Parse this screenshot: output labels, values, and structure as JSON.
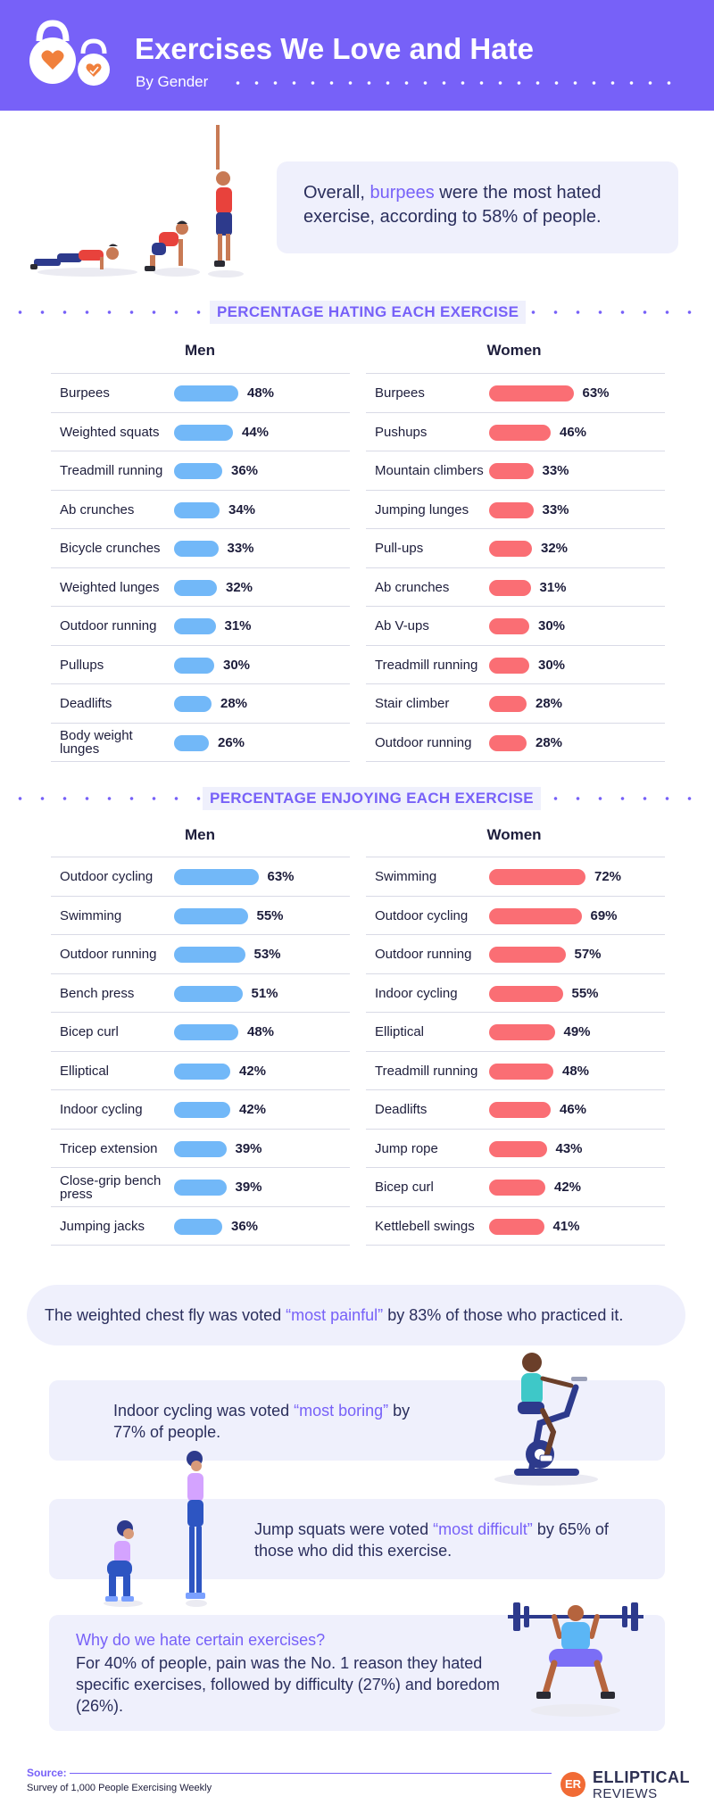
{
  "header": {
    "title": "Exercises We Love and Hate",
    "subtitle": "By Gender"
  },
  "intro": {
    "text_before": "Overall, ",
    "highlight": "burpees",
    "text_after": " were the most hated exercise, according to 58% of people."
  },
  "colors": {
    "brand_purple": "#7761f8",
    "men_bar": "#72b8f8",
    "women_bar": "#fa6e74",
    "panel": "#eff0fc"
  },
  "chart_data": [
    {
      "type": "bar",
      "title": "PERCENTAGE HATING EACH EXERCISE",
      "panel": "Men",
      "unit": "%",
      "categories": [
        "Burpees",
        "Weighted squats",
        "Treadmill running",
        "Ab crunches",
        "Bicycle crunches",
        "Weighted lunges",
        "Outdoor running",
        "Pullups",
        "Deadlifts",
        "Body weight lunges"
      ],
      "values": [
        48,
        44,
        36,
        34,
        33,
        32,
        31,
        30,
        28,
        26
      ]
    },
    {
      "type": "bar",
      "title": "PERCENTAGE HATING EACH EXERCISE",
      "panel": "Women",
      "unit": "%",
      "categories": [
        "Burpees",
        "Pushups",
        "Mountain climbers",
        "Jumping lunges",
        "Pull-ups",
        "Ab crunches",
        "Ab V-ups",
        "Treadmill running",
        "Stair climber",
        "Outdoor running"
      ],
      "values": [
        63,
        46,
        33,
        33,
        32,
        31,
        30,
        30,
        28,
        28
      ]
    },
    {
      "type": "bar",
      "title": "PERCENTAGE ENJOYING EACH EXERCISE",
      "panel": "Men",
      "unit": "%",
      "categories": [
        "Outdoor cycling",
        "Swimming",
        "Outdoor running",
        "Bench press",
        "Bicep curl",
        "Elliptical",
        "Indoor cycling",
        "Tricep extension",
        "Close-grip bench press",
        "Jumping jacks"
      ],
      "values": [
        63,
        55,
        53,
        51,
        48,
        42,
        42,
        39,
        39,
        36
      ]
    },
    {
      "type": "bar",
      "title": "PERCENTAGE ENJOYING EACH EXERCISE",
      "panel": "Women",
      "unit": "%",
      "categories": [
        "Swimming",
        "Outdoor cycling",
        "Outdoor running",
        "Indoor cycling",
        "Elliptical",
        "Treadmill running",
        "Deadlifts",
        "Jump rope",
        "Bicep curl",
        "Kettlebell swings"
      ],
      "values": [
        72,
        69,
        57,
        55,
        49,
        48,
        46,
        43,
        42,
        41
      ]
    }
  ],
  "sections": {
    "hating": {
      "label": "PERCENTAGE HATING EACH EXERCISE",
      "men_title": "Men",
      "women_title": "Women"
    },
    "enjoying": {
      "label": "PERCENTAGE ENJOYING EACH EXERCISE",
      "men_title": "Men",
      "women_title": "Women"
    }
  },
  "facts": {
    "painful": {
      "before": "The weighted chest fly was voted ",
      "highlight": "“most painful”",
      "after": " by 83% of those who practiced it."
    },
    "boring": {
      "before": "Indoor cycling was voted ",
      "highlight": "“most boring”",
      "after": " by 77% of people."
    },
    "difficult": {
      "before": "Jump squats were voted ",
      "highlight": "“most difficult”",
      "after": " by 65% of those who did this exercise."
    },
    "why": {
      "title": "Why do we hate certain exercises?",
      "text": "For 40% of people, pain was the No. 1 reason they hated specific exercises, followed by difficulty (27%) and boredom (26%)."
    }
  },
  "footer": {
    "source_label": "Source:",
    "source_text": "Survey of 1,000 People Exercising Weekly",
    "brand_badge": "ER",
    "brand_name": "ELLIPTICAL",
    "brand_sub": "REVIEWS"
  }
}
